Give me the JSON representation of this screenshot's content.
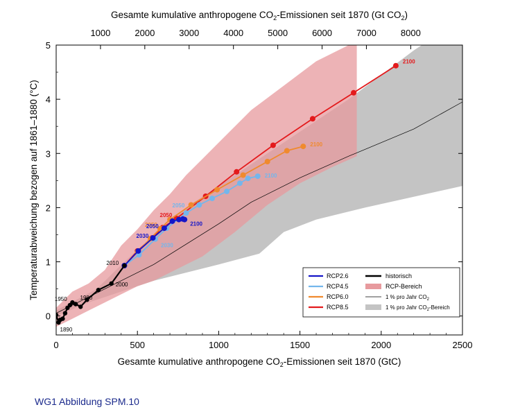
{
  "caption": "WG1 Abbildung SPM.10",
  "chart_data": {
    "type": "line",
    "title": "",
    "top_axis": {
      "label_main": "Gesamte kumulative anthropogene CO",
      "label_sub": "2",
      "label_end": "-Emissionen seit 1870 (Gt CO",
      "label_end_sub": "2",
      "label_close": ")",
      "ticks": [
        1000,
        2000,
        3000,
        4000,
        5000,
        6000,
        7000,
        8000
      ],
      "tick_labels": [
        "1000",
        "2000",
        "3000",
        "4000",
        "5000",
        "6000",
        "7000",
        "8000"
      ]
    },
    "x_axis": {
      "label_main": "Gesamte kumulative anthropogene CO",
      "label_sub": "2",
      "label_end": "-Emissionen seit 1870 (GtC)",
      "range": [
        0,
        2500
      ],
      "ticks": [
        0,
        500,
        1000,
        1500,
        2000,
        2500
      ],
      "tick_labels": [
        "0",
        "500",
        "1000",
        "1500",
        "2000",
        "2500"
      ]
    },
    "y_axis": {
      "label": "Temperaturabweichung bezogen auf 1861–1880 (°C)",
      "range": [
        -0.35,
        5
      ],
      "ticks": [
        0,
        1,
        2,
        3,
        4,
        5
      ],
      "tick_labels": [
        "0",
        "1",
        "2",
        "3",
        "4",
        "5"
      ]
    },
    "grid": false,
    "legend_position": "lower-right",
    "legend": {
      "left": [
        {
          "label": "RCP2.6",
          "color": "#1515c8"
        },
        {
          "label": "RCP4.5",
          "color": "#74b6ec"
        },
        {
          "label": "RCP6.0",
          "color": "#f08a2e"
        },
        {
          "label": "RCP8.5",
          "color": "#e31a1c"
        }
      ],
      "right": [
        {
          "label": "historisch",
          "kind": "line",
          "color": "#000000"
        },
        {
          "label": "RCP-Bereich",
          "kind": "patch",
          "color": "#e79a9e"
        },
        {
          "label": "1 % pro Jahr CO",
          "sub": "2",
          "kind": "thinline",
          "color": "#000000"
        },
        {
          "label": "1 % pro Jahr CO",
          "sub": "2",
          "tail": "-Bereich",
          "kind": "patch",
          "color": "#c4c4c4"
        }
      ]
    },
    "bands": [
      {
        "name": "1 % pro Jahr CO2-Bereich",
        "color": "#c4c4c4",
        "upper": [
          [
            0,
            0.1
          ],
          [
            250,
            0.5
          ],
          [
            420,
            1.0
          ],
          [
            620,
            1.55
          ],
          [
            800,
            2.0
          ],
          [
            1000,
            2.4
          ],
          [
            1200,
            2.8
          ],
          [
            1500,
            3.4
          ],
          [
            1800,
            4.0
          ],
          [
            2000,
            4.45
          ],
          [
            2200,
            4.9
          ],
          [
            2250,
            5.0
          ],
          [
            2500,
            5.0
          ]
        ],
        "lower": [
          [
            2500,
            2.4
          ],
          [
            2200,
            2.2
          ],
          [
            1900,
            2.0
          ],
          [
            1600,
            1.78
          ],
          [
            1400,
            1.55
          ],
          [
            1250,
            1.15
          ],
          [
            1000,
            0.95
          ],
          [
            800,
            0.8
          ],
          [
            600,
            0.65
          ],
          [
            400,
            0.45
          ],
          [
            200,
            0.25
          ],
          [
            0,
            0.0
          ]
        ]
      },
      {
        "name": "RCP-Bereich",
        "color": "#e79a9e",
        "upper": [
          [
            0,
            0.15
          ],
          [
            100,
            0.45
          ],
          [
            200,
            0.6
          ],
          [
            300,
            0.85
          ],
          [
            400,
            1.3
          ],
          [
            500,
            1.6
          ],
          [
            600,
            1.95
          ],
          [
            700,
            2.25
          ],
          [
            800,
            2.6
          ],
          [
            900,
            2.9
          ],
          [
            1000,
            3.2
          ],
          [
            1100,
            3.5
          ],
          [
            1200,
            3.8
          ],
          [
            1400,
            4.25
          ],
          [
            1600,
            4.7
          ],
          [
            1800,
            5.0
          ],
          [
            1850,
            5.0
          ]
        ],
        "lower": [
          [
            1850,
            2.95
          ],
          [
            1700,
            2.75
          ],
          [
            1500,
            2.45
          ],
          [
            1300,
            2.05
          ],
          [
            1100,
            1.55
          ],
          [
            900,
            1.1
          ],
          [
            700,
            0.8
          ],
          [
            600,
            0.65
          ],
          [
            500,
            0.55
          ],
          [
            400,
            0.4
          ],
          [
            300,
            0.25
          ],
          [
            200,
            0.1
          ],
          [
            100,
            -0.05
          ],
          [
            0,
            -0.2
          ]
        ]
      }
    ],
    "series": [
      {
        "name": "1 % pro Jahr CO2",
        "kind": "thinline",
        "color": "#000000",
        "points": [
          [
            0,
            0.05
          ],
          [
            300,
            0.5
          ],
          [
            600,
            0.95
          ],
          [
            1000,
            1.7
          ],
          [
            1200,
            2.1
          ],
          [
            1500,
            2.55
          ],
          [
            1800,
            2.95
          ],
          [
            2200,
            3.45
          ],
          [
            2500,
            3.95
          ]
        ]
      },
      {
        "name": "RCP8.5",
        "color": "#e31a1c",
        "points": [
          [
            420,
            0.93
          ],
          [
            500,
            1.2
          ],
          [
            590,
            1.44
          ],
          [
            655,
            1.63
          ],
          [
            740,
            1.8
          ],
          [
            920,
            2.21
          ],
          [
            1110,
            2.66
          ],
          [
            1335,
            3.15
          ],
          [
            1578,
            3.64
          ],
          [
            1830,
            4.12
          ],
          [
            2090,
            4.62
          ]
        ],
        "labels": [
          {
            "year": "2050",
            "at": 4
          },
          {
            "year": "2100",
            "at": 10
          }
        ]
      },
      {
        "name": "RCP6.0",
        "color": "#f08a2e",
        "points": [
          [
            420,
            0.93
          ],
          [
            500,
            1.18
          ],
          [
            580,
            1.43
          ],
          [
            640,
            1.61
          ],
          [
            700,
            1.78
          ],
          [
            830,
            2.05
          ],
          [
            990,
            2.33
          ],
          [
            1150,
            2.6
          ],
          [
            1300,
            2.85
          ],
          [
            1420,
            3.05
          ],
          [
            1520,
            3.13
          ]
        ],
        "labels": [
          {
            "year": "2050",
            "at": 3
          },
          {
            "year": "2100",
            "at": 10
          }
        ]
      },
      {
        "name": "RCP4.5",
        "color": "#74b6ec",
        "points": [
          [
            420,
            0.93
          ],
          [
            510,
            1.13
          ],
          [
            610,
            1.42
          ],
          [
            680,
            1.62
          ],
          [
            800,
            1.9
          ],
          [
            880,
            2.05
          ],
          [
            960,
            2.17
          ],
          [
            1050,
            2.3
          ],
          [
            1130,
            2.45
          ],
          [
            1180,
            2.54
          ],
          [
            1240,
            2.58
          ]
        ],
        "labels": [
          {
            "year": "2030",
            "at": 2
          },
          {
            "year": "2050",
            "at": 4
          },
          {
            "year": "2100",
            "at": 10
          }
        ]
      },
      {
        "name": "RCP2.6",
        "color": "#1515c8",
        "points": [
          [
            420,
            0.93
          ],
          [
            505,
            1.2
          ],
          [
            595,
            1.44
          ],
          [
            665,
            1.62
          ],
          [
            715,
            1.75
          ],
          [
            755,
            1.78
          ],
          [
            780,
            1.79
          ],
          [
            790,
            1.78
          ]
        ],
        "labels": [
          {
            "year": "2030",
            "at": 2
          },
          {
            "year": "2050",
            "at": 3
          },
          {
            "year": "2100",
            "at": 7
          }
        ]
      },
      {
        "name": "historisch",
        "color": "#000000",
        "points": [
          [
            0,
            0.02
          ],
          [
            15,
            -0.12
          ],
          [
            25,
            -0.07
          ],
          [
            40,
            -0.05
          ],
          [
            55,
            0.05
          ],
          [
            70,
            0.15
          ],
          [
            85,
            0.2
          ],
          [
            100,
            0.25
          ],
          [
            120,
            0.22
          ],
          [
            150,
            0.17
          ],
          [
            190,
            0.3
          ],
          [
            260,
            0.48
          ],
          [
            340,
            0.6
          ],
          [
            420,
            0.93
          ]
        ],
        "labels": [
          {
            "year": "1890",
            "at": 1
          },
          {
            "year": "1950",
            "at": 6
          },
          {
            "year": "1980",
            "at": 10
          },
          {
            "year": "2000",
            "at": 12
          },
          {
            "year": "2010",
            "at": 13
          }
        ]
      }
    ]
  }
}
